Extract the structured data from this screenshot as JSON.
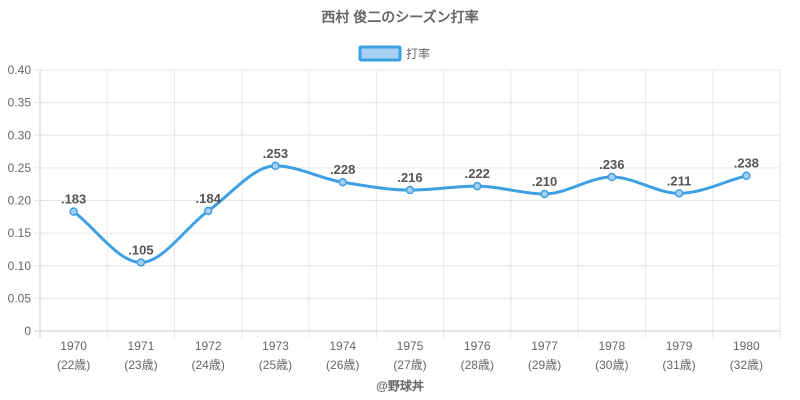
{
  "chart_data": {
    "type": "line",
    "title": "西村 俊二のシーズン打率",
    "legend": {
      "position": "top",
      "label": "打率"
    },
    "categories": [
      "1970",
      "1971",
      "1972",
      "1973",
      "1974",
      "1975",
      "1976",
      "1977",
      "1978",
      "1979",
      "1980"
    ],
    "sub_labels": [
      "(22歳)",
      "(23歳)",
      "(24歳)",
      "(25歳)",
      "(26歳)",
      "(27歳)",
      "(28歳)",
      "(29歳)",
      "(30歳)",
      "(31歳)",
      "(32歳)"
    ],
    "series": [
      {
        "name": "打率",
        "values": [
          0.183,
          0.105,
          0.184,
          0.253,
          0.228,
          0.216,
          0.222,
          0.21,
          0.236,
          0.211,
          0.238
        ],
        "labels": [
          ".183",
          ".105",
          ".184",
          ".253",
          ".228",
          ".216",
          ".222",
          ".210",
          ".236",
          ".211",
          ".238"
        ]
      }
    ],
    "ylim": [
      0,
      0.4
    ],
    "yticks": [
      0,
      0.05,
      0.1,
      0.15,
      0.2,
      0.25,
      0.3,
      0.35,
      0.4
    ],
    "ytick_labels": [
      "0",
      "0.05",
      "0.10",
      "0.15",
      "0.20",
      "0.25",
      "0.30",
      "0.35",
      "0.40"
    ],
    "grid": true,
    "colors": {
      "line": "#3ea0e3",
      "fill": "#a6cff2",
      "grid": "#e6e6e6",
      "axis": "#cccccc"
    },
    "credit": "@野球丼"
  }
}
